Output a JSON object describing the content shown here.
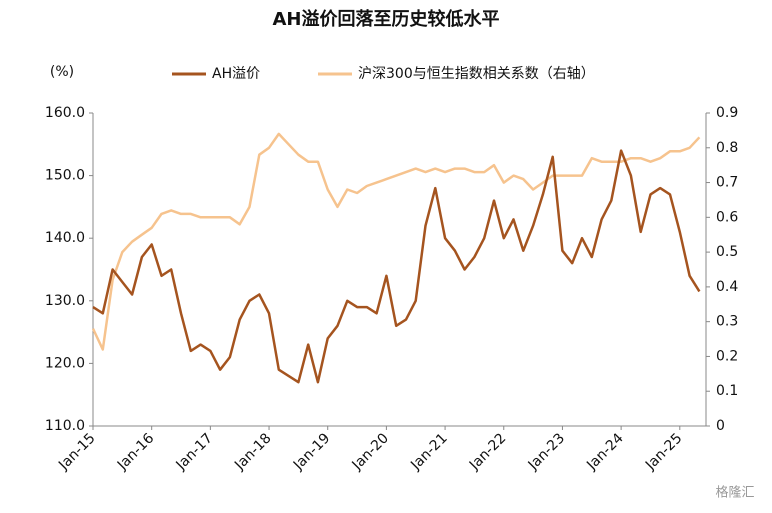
{
  "chart_data": {
    "type": "line",
    "title": "AH溢价回落至历史较低水平",
    "y_label": "(%)",
    "watermark": "格隆汇",
    "categories": [
      "Jan-15",
      null,
      null,
      null,
      null,
      null,
      "Jan-16",
      null,
      null,
      null,
      null,
      null,
      "Jan-17",
      null,
      null,
      null,
      null,
      null,
      "Jan-18",
      null,
      null,
      null,
      null,
      null,
      "Jan-19",
      null,
      null,
      null,
      null,
      null,
      "Jan-20",
      null,
      null,
      null,
      null,
      null,
      "Jan-21",
      null,
      null,
      null,
      null,
      null,
      "Jan-22",
      null,
      null,
      null,
      null,
      null,
      "Jan-23",
      null,
      null,
      null,
      null,
      null,
      "Jan-24",
      null,
      null,
      null,
      null,
      null,
      "Jan-25",
      null,
      null
    ],
    "series": [
      {
        "name": "AH溢价",
        "color": "#a5541f",
        "values": [
          129,
          128,
          135,
          133,
          131,
          137,
          139,
          134,
          135,
          128,
          122,
          123,
          122,
          119,
          121,
          127,
          130,
          131,
          128,
          119,
          118,
          117,
          123,
          117,
          124,
          126,
          130,
          129,
          129,
          128,
          134,
          126,
          127,
          130,
          142,
          148,
          140,
          138,
          135,
          137,
          140,
          146,
          140,
          143,
          138,
          142,
          147,
          153,
          138,
          136,
          140,
          137,
          143,
          146,
          154,
          150,
          141,
          147,
          148,
          147,
          141,
          134,
          131.5
        ]
      },
      {
        "name": "沪深300与恒生指数相关系数（右轴）",
        "color": "#f6c38e",
        "axis": "y2",
        "values": [
          0.28,
          0.22,
          0.42,
          0.5,
          0.53,
          0.55,
          0.57,
          0.61,
          0.62,
          0.61,
          0.61,
          0.6,
          0.6,
          0.6,
          0.6,
          0.58,
          0.63,
          0.78,
          0.8,
          0.84,
          0.81,
          0.78,
          0.76,
          0.76,
          0.68,
          0.63,
          0.68,
          0.67,
          0.69,
          0.7,
          0.71,
          0.72,
          0.73,
          0.74,
          0.73,
          0.74,
          0.73,
          0.74,
          0.74,
          0.73,
          0.73,
          0.75,
          0.7,
          0.72,
          0.71,
          0.68,
          0.7,
          0.72,
          0.72,
          0.72,
          0.72,
          0.77,
          0.76,
          0.76,
          0.76,
          0.77,
          0.77,
          0.76,
          0.77,
          0.79,
          0.79,
          0.8,
          0.83
        ]
      }
    ],
    "ylim": [
      110,
      160
    ],
    "yticks": [
      {
        "value": 110,
        "label": "110.0"
      },
      {
        "value": 120,
        "label": "120.0"
      },
      {
        "value": 130,
        "label": "130.0"
      },
      {
        "value": 140,
        "label": "140.0"
      },
      {
        "value": 150,
        "label": "150.0"
      },
      {
        "value": 160,
        "label": "160.0"
      }
    ],
    "y2lim": [
      0,
      0.9
    ],
    "y2ticks": [
      0,
      0.1,
      0.2,
      0.3,
      0.4,
      0.5,
      0.6,
      0.7,
      0.8,
      0.9
    ],
    "grid": false
  }
}
